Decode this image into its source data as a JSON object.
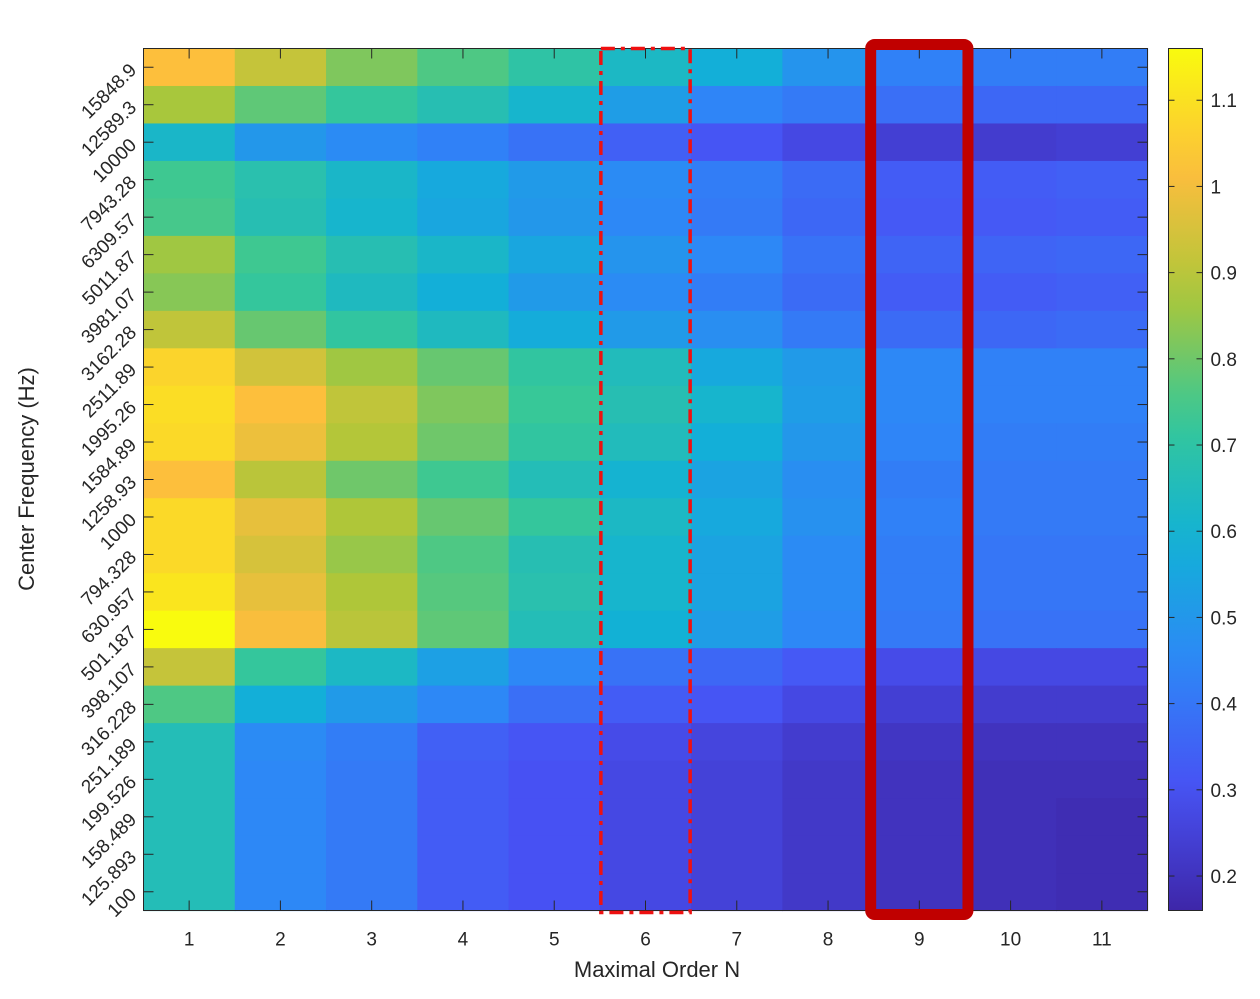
{
  "chart_data": {
    "type": "heatmap",
    "xlabel": "Maximal Order N",
    "ylabel": "Center Frequency (Hz)",
    "x_categories": [
      "1",
      "2",
      "3",
      "4",
      "5",
      "6",
      "7",
      "8",
      "9",
      "10",
      "11"
    ],
    "y_categories": [
      "15848.9",
      "12589.3",
      "10000",
      "7943.28",
      "6309.57",
      "5011.87",
      "3981.07",
      "3162.28",
      "2511.89",
      "1995.26",
      "1584.89",
      "1258.93",
      "1000",
      "794.328",
      "630.957",
      "501.187",
      "398.107",
      "316.228",
      "251.189",
      "199.526",
      "158.489",
      "125.893",
      "100"
    ],
    "values": [
      [
        1.02,
        0.92,
        0.82,
        0.76,
        0.7,
        0.63,
        0.58,
        0.49,
        0.43,
        0.42,
        0.42
      ],
      [
        0.87,
        0.78,
        0.72,
        0.67,
        0.61,
        0.52,
        0.44,
        0.41,
        0.38,
        0.36,
        0.36
      ],
      [
        0.62,
        0.5,
        0.46,
        0.43,
        0.39,
        0.34,
        0.31,
        0.27,
        0.24,
        0.23,
        0.24
      ],
      [
        0.74,
        0.68,
        0.62,
        0.56,
        0.51,
        0.46,
        0.42,
        0.37,
        0.33,
        0.33,
        0.34
      ],
      [
        0.75,
        0.67,
        0.61,
        0.55,
        0.5,
        0.45,
        0.41,
        0.36,
        0.32,
        0.32,
        0.33
      ],
      [
        0.86,
        0.74,
        0.67,
        0.62,
        0.55,
        0.49,
        0.45,
        0.39,
        0.35,
        0.35,
        0.36
      ],
      [
        0.83,
        0.72,
        0.64,
        0.58,
        0.51,
        0.46,
        0.42,
        0.37,
        0.33,
        0.33,
        0.34
      ],
      [
        0.91,
        0.79,
        0.71,
        0.64,
        0.57,
        0.51,
        0.47,
        0.41,
        0.37,
        0.36,
        0.37
      ],
      [
        1.07,
        0.94,
        0.86,
        0.79,
        0.71,
        0.65,
        0.56,
        0.51,
        0.45,
        0.43,
        0.43
      ],
      [
        1.09,
        1.02,
        0.91,
        0.82,
        0.73,
        0.67,
        0.61,
        0.52,
        0.45,
        0.43,
        0.43
      ],
      [
        1.08,
        0.99,
        0.89,
        0.8,
        0.71,
        0.65,
        0.58,
        0.5,
        0.44,
        0.42,
        0.42
      ],
      [
        1.02,
        0.9,
        0.8,
        0.74,
        0.66,
        0.6,
        0.54,
        0.47,
        0.42,
        0.41,
        0.41
      ],
      [
        1.08,
        0.98,
        0.88,
        0.79,
        0.72,
        0.63,
        0.56,
        0.48,
        0.43,
        0.41,
        0.41
      ],
      [
        1.08,
        0.95,
        0.85,
        0.76,
        0.67,
        0.61,
        0.54,
        0.46,
        0.42,
        0.4,
        0.4
      ],
      [
        1.11,
        0.98,
        0.88,
        0.77,
        0.68,
        0.61,
        0.54,
        0.46,
        0.42,
        0.4,
        0.4
      ],
      [
        1.16,
        1.01,
        0.9,
        0.78,
        0.66,
        0.59,
        0.52,
        0.45,
        0.41,
        0.39,
        0.39
      ],
      [
        0.92,
        0.72,
        0.63,
        0.53,
        0.45,
        0.39,
        0.36,
        0.32,
        0.28,
        0.27,
        0.27
      ],
      [
        0.76,
        0.58,
        0.51,
        0.45,
        0.38,
        0.33,
        0.31,
        0.27,
        0.24,
        0.23,
        0.23
      ],
      [
        0.66,
        0.46,
        0.42,
        0.34,
        0.31,
        0.28,
        0.26,
        0.23,
        0.21,
        0.2,
        0.2
      ],
      [
        0.66,
        0.45,
        0.41,
        0.33,
        0.3,
        0.27,
        0.25,
        0.22,
        0.2,
        0.19,
        0.19
      ],
      [
        0.66,
        0.45,
        0.41,
        0.33,
        0.3,
        0.27,
        0.25,
        0.22,
        0.2,
        0.19,
        0.18
      ],
      [
        0.66,
        0.45,
        0.41,
        0.33,
        0.3,
        0.27,
        0.25,
        0.22,
        0.2,
        0.19,
        0.18
      ],
      [
        0.66,
        0.45,
        0.41,
        0.33,
        0.3,
        0.27,
        0.25,
        0.22,
        0.2,
        0.19,
        0.18
      ]
    ],
    "colorbar": {
      "colormap": "parula",
      "min": 0.16,
      "max": 1.16,
      "ticks": [
        0.2,
        0.3,
        0.4,
        0.5,
        0.6,
        0.7,
        0.8,
        0.9,
        1,
        1.1
      ],
      "tick_labels": [
        "0.2",
        "0.3",
        "0.4",
        "0.5",
        "0.6",
        "0.7",
        "0.8",
        "0.9",
        "1",
        "1.1"
      ]
    },
    "highlights": [
      {
        "column": "6",
        "style": "dash-dot",
        "color": "#ee1111"
      },
      {
        "column": "9",
        "style": "solid",
        "color": "#c00000"
      }
    ]
  }
}
